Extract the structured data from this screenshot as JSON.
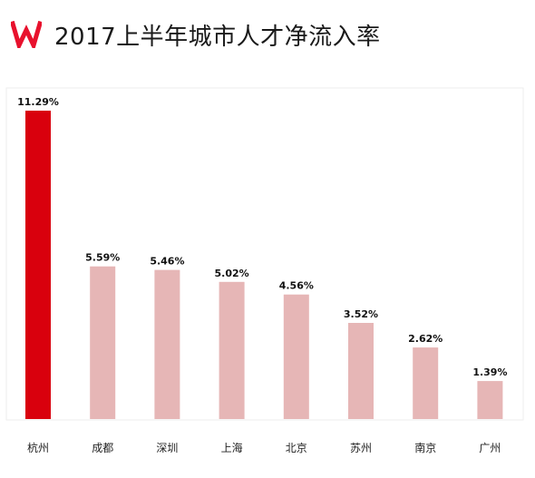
{
  "brand": {
    "logo_letter": "W",
    "logo_color": "#e8112d"
  },
  "header": {
    "title": "2017上半年城市人才净流入率"
  },
  "chart_data": {
    "type": "bar",
    "title": "2017上半年城市人才净流入率",
    "categories": [
      "杭州",
      "成都",
      "深圳",
      "上海",
      "北京",
      "苏州",
      "南京",
      "广州"
    ],
    "values": [
      11.29,
      5.59,
      5.46,
      5.02,
      4.56,
      3.52,
      2.62,
      1.39
    ],
    "value_labels": [
      "11.29%",
      "5.59%",
      "5.46%",
      "5.02%",
      "4.56%",
      "3.52%",
      "2.62%",
      "1.39%"
    ],
    "unit": "%",
    "ylim": [
      0,
      11.29
    ],
    "grid": false,
    "legend": "none",
    "colors": {
      "highlight": "#d9000d",
      "default": "#e6b6b6",
      "frame": "#eeeeee"
    },
    "highlight_index": 0
  }
}
